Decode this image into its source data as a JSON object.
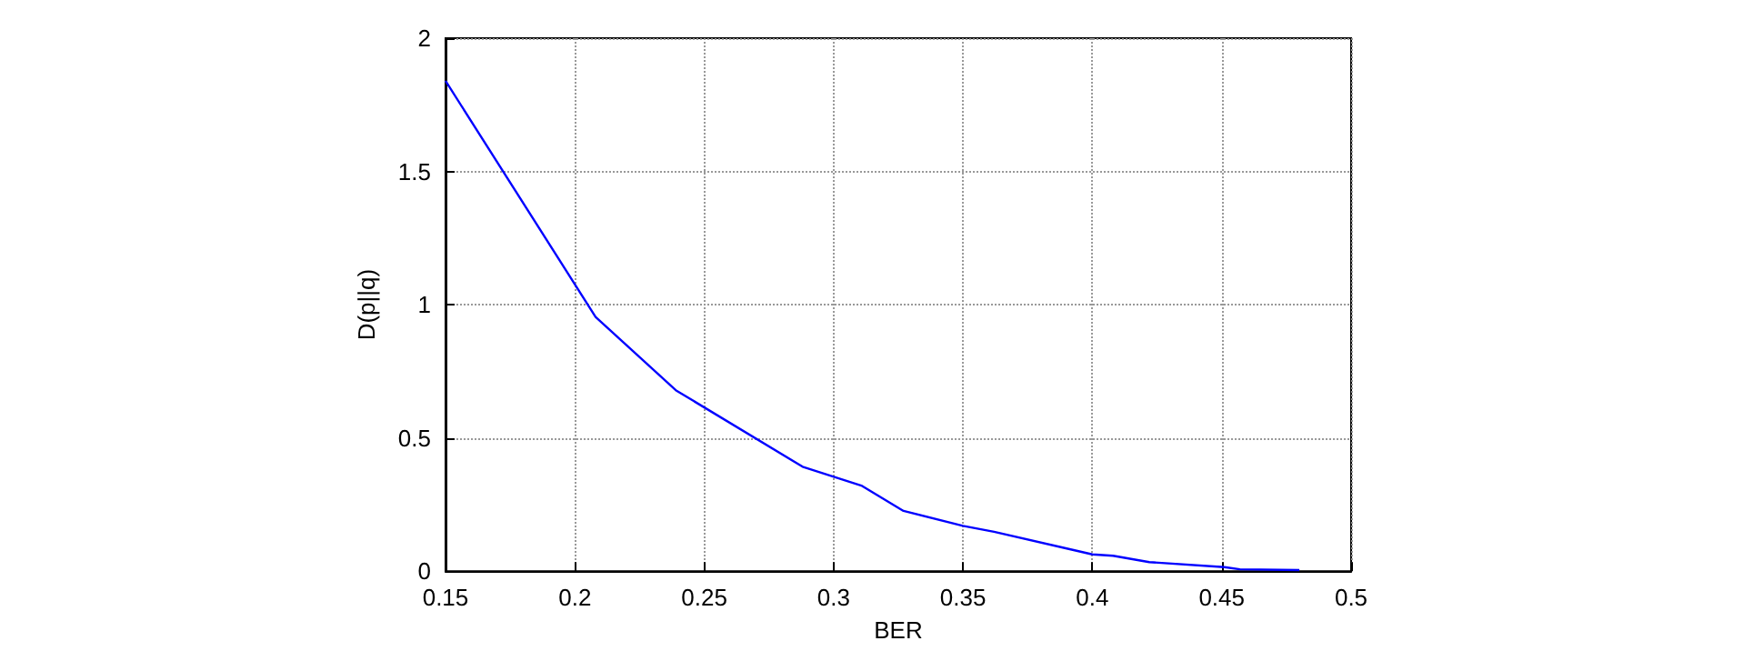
{
  "chart_data": {
    "type": "line",
    "xlabel": "BER",
    "ylabel": "D(p||q)",
    "x": [
      0.15,
      0.208,
      0.239,
      0.288,
      0.311,
      0.327,
      0.35,
      0.362,
      0.392,
      0.4,
      0.408,
      0.422,
      0.451,
      0.457,
      0.48
    ],
    "series": [
      {
        "color": "#0000ff",
        "values": [
          1.84,
          0.954,
          0.679,
          0.392,
          0.32,
          0.226,
          0.17,
          0.148,
          0.081,
          0.063,
          0.058,
          0.034,
          0.015,
          0.007,
          0.004
        ]
      }
    ],
    "xlim": [
      0.15,
      0.5
    ],
    "xticks": [
      0.15,
      0.2,
      0.25,
      0.3,
      0.35,
      0.4,
      0.45,
      0.5
    ],
    "ylim": [
      0,
      2
    ],
    "yticks": [
      0,
      0.5,
      1,
      1.5,
      2
    ],
    "grid": true,
    "marker": "none",
    "line_style": "solid"
  }
}
